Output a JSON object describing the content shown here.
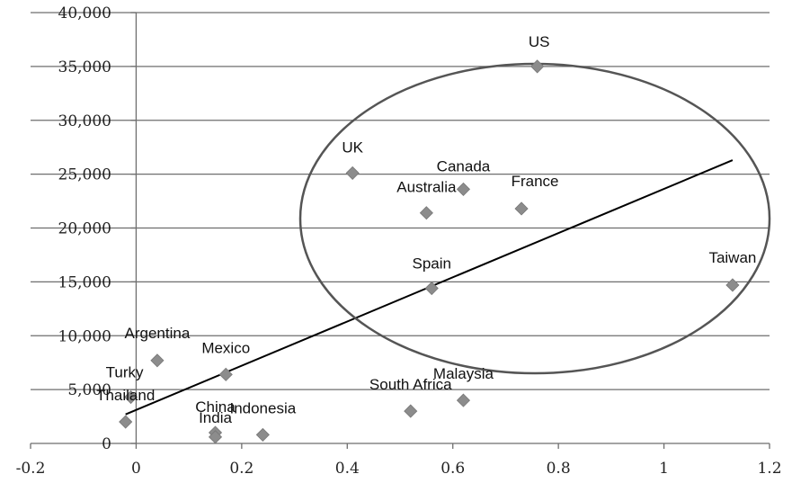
{
  "chart_data": {
    "type": "scatter",
    "title": "",
    "xlabel": "",
    "ylabel": "",
    "xlim": [
      -0.2,
      1.2
    ],
    "ylim": [
      0,
      40000
    ],
    "grid": "horizontal",
    "x_ticks": [
      -0.2,
      0,
      0.2,
      0.4,
      0.6,
      0.8,
      1,
      1.2
    ],
    "x_tick_labels": [
      "-0.2",
      "0",
      "0.2",
      "0.4",
      "0.6",
      "0.8",
      "1",
      "1.2"
    ],
    "y_ticks": [
      0,
      5000,
      10000,
      15000,
      20000,
      25000,
      30000,
      35000,
      40000
    ],
    "y_tick_labels": [
      "0",
      "5,000",
      "10,000",
      "15,000",
      "20,000",
      "25,000",
      "30,000",
      "35,000",
      "40,000"
    ],
    "points": [
      {
        "label": "US",
        "x": 0.76,
        "y": 35000
      },
      {
        "label": "UK",
        "x": 0.41,
        "y": 25100
      },
      {
        "label": "Canada",
        "x": 0.62,
        "y": 23600
      },
      {
        "label": "Australia",
        "x": 0.55,
        "y": 21400
      },
      {
        "label": "France",
        "x": 0.73,
        "y": 21800
      },
      {
        "label": "Spain",
        "x": 0.56,
        "y": 14400
      },
      {
        "label": "Taiwan",
        "x": 1.13,
        "y": 14700
      },
      {
        "label": "Argentina",
        "x": 0.04,
        "y": 7700
      },
      {
        "label": "Mexico",
        "x": 0.17,
        "y": 6400
      },
      {
        "label": "Turky",
        "x": -0.01,
        "y": 4300
      },
      {
        "label": "Thailand",
        "x": -0.02,
        "y": 2000
      },
      {
        "label": "China",
        "x": 0.15,
        "y": 1000
      },
      {
        "label": "India",
        "x": 0.15,
        "y": 600
      },
      {
        "label": "Indonesia",
        "x": 0.24,
        "y": 800
      },
      {
        "label": "South Africa",
        "x": 0.52,
        "y": 3000
      },
      {
        "label": "Malaysia",
        "x": 0.62,
        "y": 4000
      }
    ],
    "trendline": {
      "x": [
        -0.02,
        1.13
      ],
      "y": [
        2700,
        26300
      ]
    },
    "marker_color": "#8c8c8c",
    "grid_color": "#6e6e6e"
  }
}
